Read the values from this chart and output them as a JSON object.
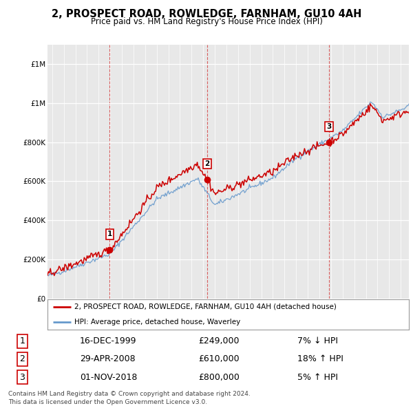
{
  "title": "2, PROSPECT ROAD, ROWLEDGE, FARNHAM, GU10 4AH",
  "subtitle": "Price paid vs. HM Land Registry's House Price Index (HPI)",
  "legend_line1": "2, PROSPECT ROAD, ROWLEDGE, FARNHAM, GU10 4AH (detached house)",
  "legend_line2": "HPI: Average price, detached house, Waverley",
  "transactions": [
    {
      "num": 1,
      "date": "16-DEC-1999",
      "price": 249000,
      "hpi": "7% ↓ HPI",
      "year": 1999.96
    },
    {
      "num": 2,
      "date": "29-APR-2008",
      "price": 610000,
      "hpi": "18% ↑ HPI",
      "year": 2008.32
    },
    {
      "num": 3,
      "date": "01-NOV-2018",
      "price": 800000,
      "hpi": "5% ↑ HPI",
      "year": 2018.83
    }
  ],
  "price_color": "#cc0000",
  "hpi_color": "#6699cc",
  "plot_bg": "#e8e8e8",
  "footer": "Contains HM Land Registry data © Crown copyright and database right 2024.\nThis data is licensed under the Open Government Licence v3.0.",
  "ylim": [
    0,
    1300000
  ],
  "yticks": [
    0,
    200000,
    400000,
    600000,
    800000,
    1000000,
    1200000
  ],
  "xlim_start": 1994.6,
  "xlim_end": 2025.7
}
